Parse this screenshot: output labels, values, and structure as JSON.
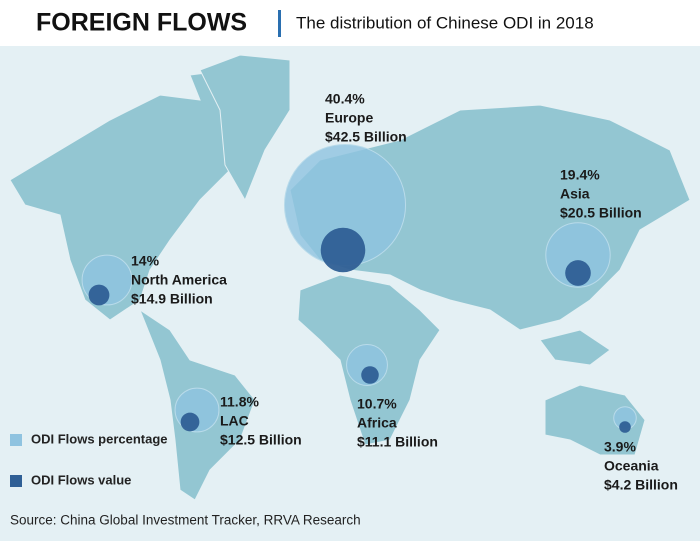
{
  "chart_data": {
    "type": "bubble-map",
    "title": "FOREIGN FLOWS",
    "subtitle": "The distribution of Chinese ODI in 2018",
    "source": "Source: China Global Investment Tracker, RRVA Research",
    "categories": [
      "Europe",
      "Asia",
      "North America",
      "LAC",
      "Africa",
      "Oceania"
    ],
    "series": [
      {
        "name": "ODI Flows percentage",
        "color": "#8fc3e0",
        "values": [
          40.4,
          19.4,
          14,
          11.8,
          10.7,
          3.9
        ],
        "value_labels": [
          "40.4%",
          "19.4%",
          "14%",
          "11.8%",
          "10.7%",
          "3.9%"
        ]
      },
      {
        "name": "ODI Flows value",
        "color": "#2f5f95",
        "values": [
          42.5,
          20.5,
          14.9,
          12.5,
          11.1,
          4.2
        ],
        "value_labels": [
          "$42.5 Billion",
          "$20.5 Billion",
          "$14.9 Billion",
          "$12.5 Billion",
          "$11.1 Billion",
          "$4.2 Billion"
        ]
      }
    ]
  }
}
